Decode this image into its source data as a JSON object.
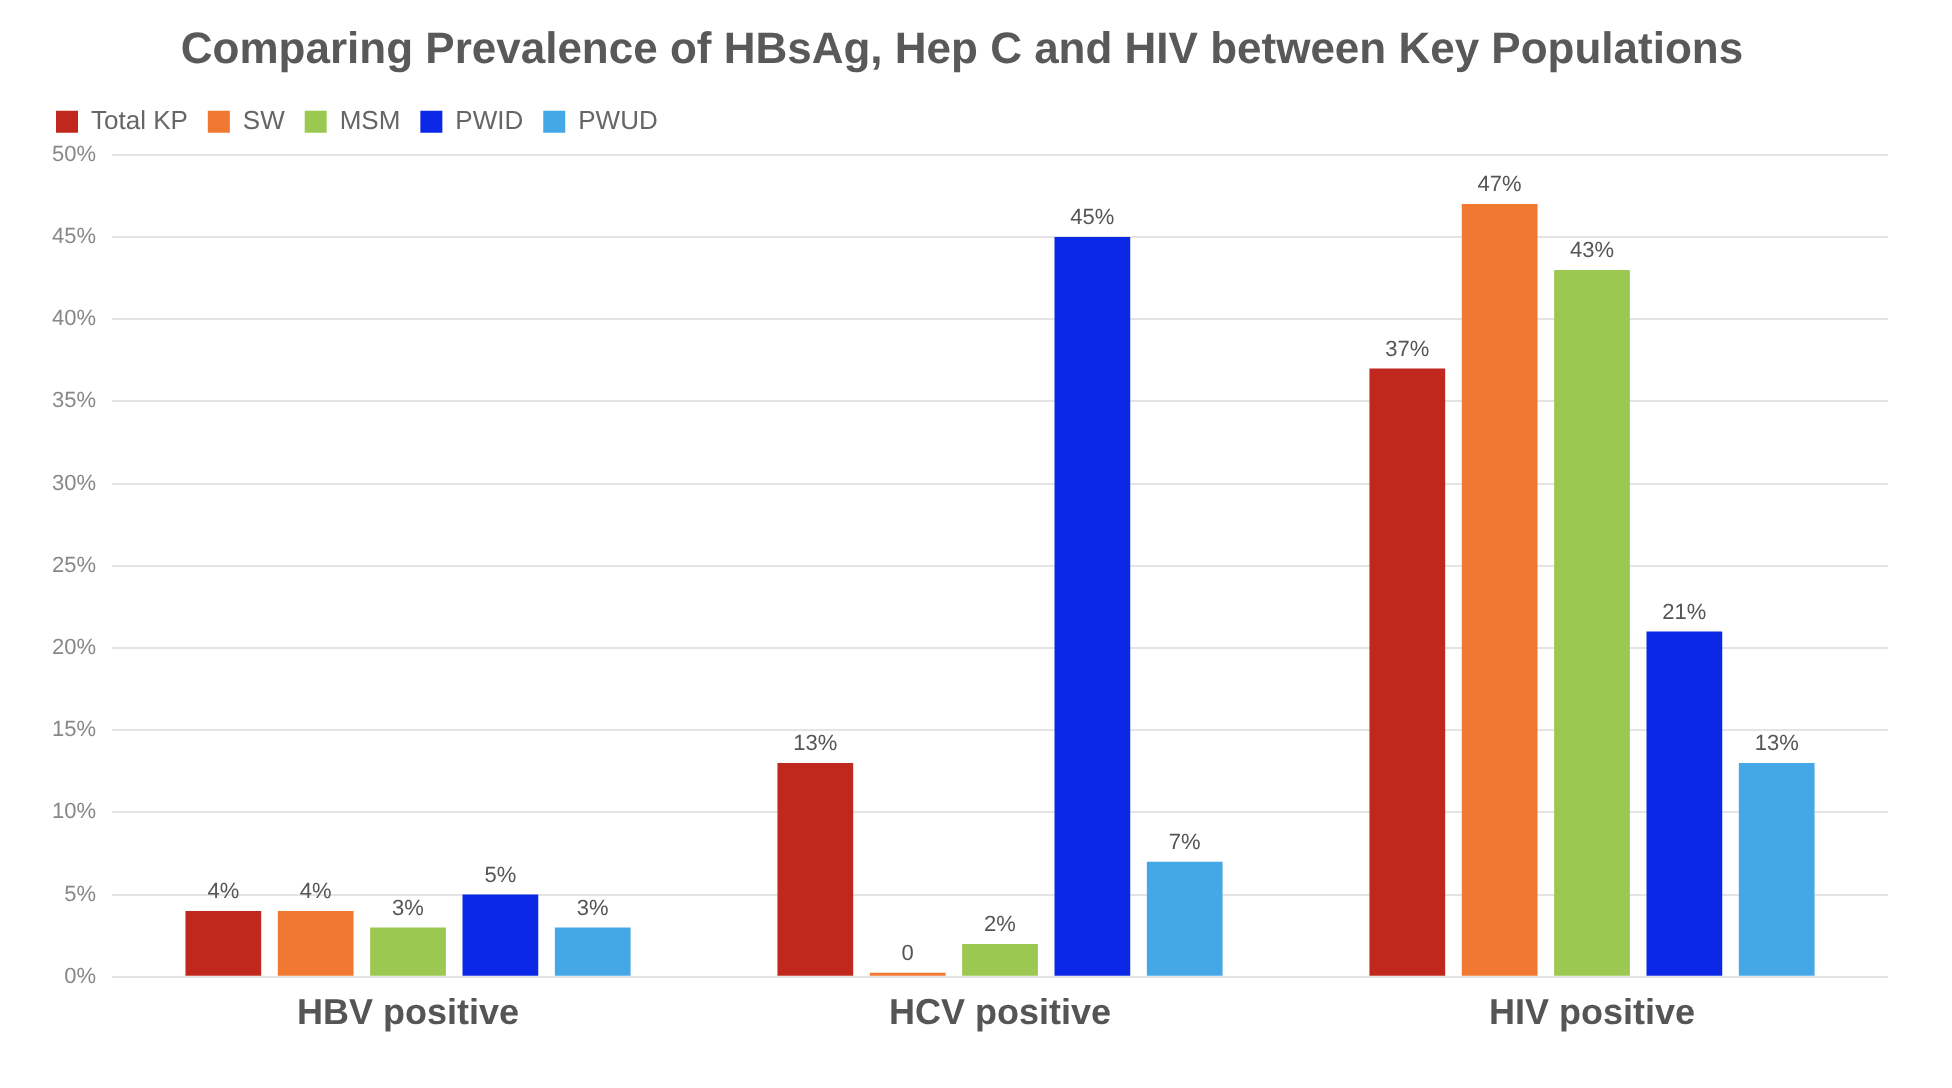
{
  "chart_data": {
    "type": "bar",
    "title": "Comparing Prevalence of HBsAg, Hep C and HIV between Key Populations",
    "categories": [
      "HBV positive",
      "HCV positive",
      "HIV positive"
    ],
    "series": [
      {
        "name": "Total KP",
        "color": "#c0281e",
        "values": [
          4,
          13,
          37
        ],
        "value_labels": [
          "4%",
          "13%",
          "37%"
        ]
      },
      {
        "name": "SW",
        "color": "#f07830",
        "values": [
          4,
          0,
          47
        ],
        "value_labels": [
          "4%",
          "0",
          "47%"
        ]
      },
      {
        "name": "MSM",
        "color": "#9bc850",
        "values": [
          3,
          2,
          43
        ],
        "value_labels": [
          "3%",
          "2%",
          "43%"
        ]
      },
      {
        "name": "PWID",
        "color": "#0a28e6",
        "values": [
          5,
          45,
          21
        ],
        "value_labels": [
          "5%",
          "45%",
          "21%"
        ]
      },
      {
        "name": "PWUD",
        "color": "#44a8e6",
        "values": [
          3,
          7,
          13
        ],
        "value_labels": [
          "3%",
          "7%",
          "13%"
        ]
      }
    ],
    "ylim": [
      0,
      50
    ],
    "yticks": [
      {
        "value": 0,
        "label": "0%"
      },
      {
        "value": 5,
        "label": "5%"
      },
      {
        "value": 10,
        "label": "10%"
      },
      {
        "value": 15,
        "label": "15%"
      },
      {
        "value": 20,
        "label": "20%"
      },
      {
        "value": 25,
        "label": "25%"
      },
      {
        "value": 30,
        "label": "30%"
      },
      {
        "value": 35,
        "label": "35%"
      },
      {
        "value": 40,
        "label": "40%"
      },
      {
        "value": 45,
        "label": "45%"
      },
      {
        "value": 50,
        "label": "50%"
      }
    ],
    "grid": "y",
    "legend": "top left"
  }
}
